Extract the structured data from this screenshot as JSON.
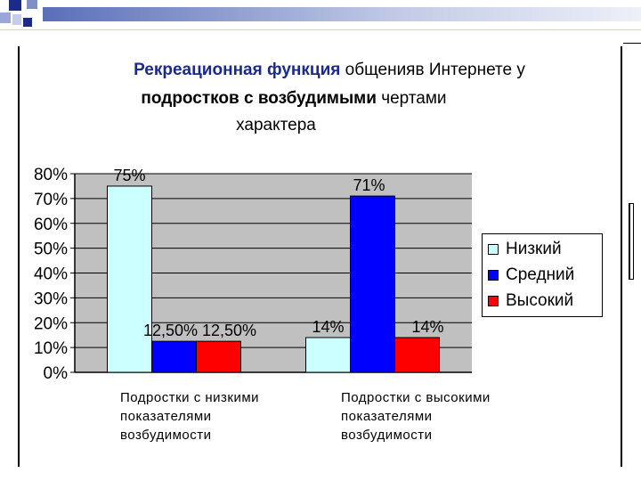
{
  "chart_data": {
    "type": "bar",
    "title_parts": [
      "Рекреационная функция",
      " общенияв Интернете у",
      "подростков с возбудимыми",
      " чертами",
      "характера"
    ],
    "categories": [
      "Подростки  с низкими\nпоказателями\nвозбудимости",
      "Подростки  с высокими\nпоказателями\nвозбудимости"
    ],
    "series": [
      {
        "name": "Низкий",
        "values": [
          75,
          14
        ],
        "labels": [
          "75%",
          "14%"
        ],
        "color": "#ccffff"
      },
      {
        "name": "Средний",
        "values": [
          12.5,
          71
        ],
        "labels": [
          "12,50%",
          "71%"
        ],
        "color": "#0000ff"
      },
      {
        "name": "Высокий",
        "values": [
          12.5,
          14
        ],
        "labels": [
          "12,50%",
          "14%"
        ],
        "color": "#ff0000"
      }
    ],
    "ylim": [
      0,
      80
    ],
    "yticks": [
      "0%",
      "10%",
      "20%",
      "30%",
      "40%",
      "50%",
      "60%",
      "70%",
      "80%"
    ],
    "grid": true,
    "legend_position": "right"
  }
}
